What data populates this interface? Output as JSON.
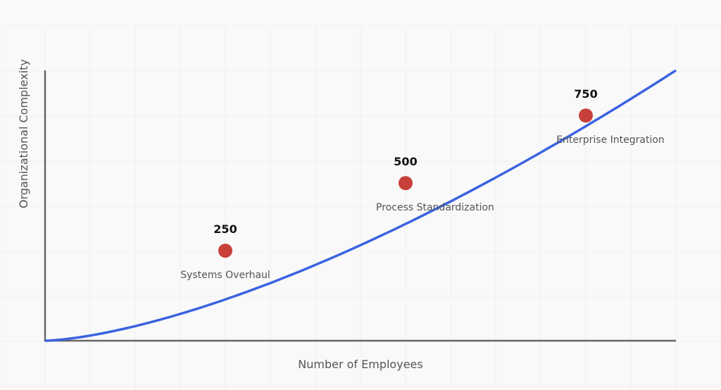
{
  "chart_data": {
    "type": "line",
    "title": "",
    "xlabel": "Number of Employees",
    "ylabel": "Organizational Complexity",
    "xlim": [
      0,
      875
    ],
    "ylim": [
      0,
      1
    ],
    "grid": true,
    "curve_color": "#3b63e0",
    "marker_color": "#c8403a",
    "milestones": [
      {
        "employees": 250,
        "value_label": "250",
        "name": "Systems Overhaul",
        "complexity": 0.333
      },
      {
        "employees": 500,
        "value_label": "500",
        "name": "Process Standardization",
        "complexity": 0.583
      },
      {
        "employees": 750,
        "value_label": "750",
        "name": "Enterprise Integration",
        "complexity": 0.833
      }
    ]
  }
}
